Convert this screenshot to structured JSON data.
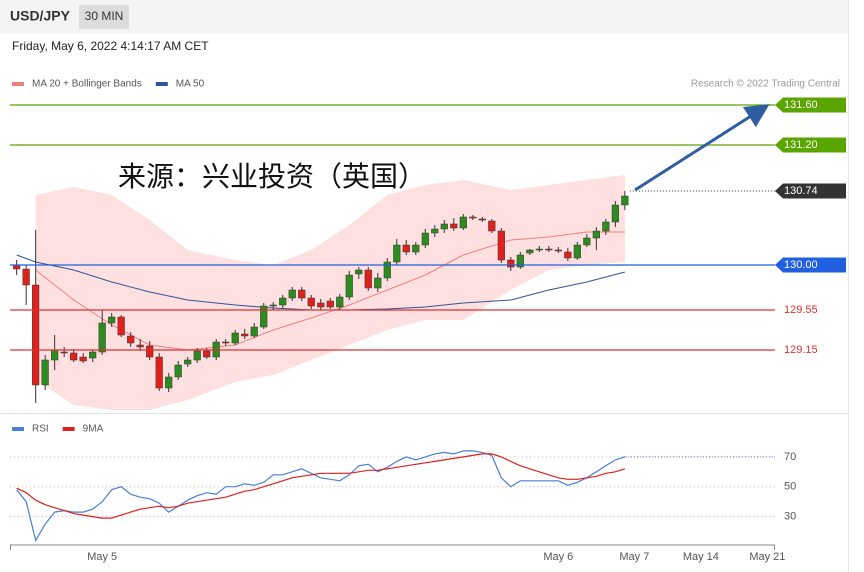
{
  "header": {
    "symbol": "USD/JPY",
    "interval": "30 MIN",
    "timestamp": "Friday, May 6, 2022 4:14:17 AM CET",
    "credit": "Research © 2022 Trading Central",
    "watermark": "来源：兴业投资（英国）"
  },
  "chart_data": [
    {
      "type": "candlestick",
      "xlim": [
        -0.7,
        79.8
      ],
      "ylim": [
        128.55,
        131.7
      ],
      "x": [
        0,
        1,
        2,
        3,
        4,
        5,
        6,
        7,
        8,
        9,
        10,
        11,
        12,
        13,
        14,
        15,
        16,
        17,
        18,
        19,
        20,
        21,
        22,
        23,
        24,
        25,
        26,
        27,
        28,
        29,
        30,
        31,
        32,
        33,
        34,
        35,
        36,
        37,
        38,
        39,
        40,
        41,
        42,
        43,
        44,
        45,
        46,
        47,
        48,
        49,
        50,
        51,
        52,
        53,
        54,
        55,
        56,
        57,
        58,
        59,
        60,
        61,
        62,
        63,
        64
      ],
      "open": [
        130.0,
        129.96,
        129.8,
        128.8,
        129.05,
        129.13,
        129.12,
        129.08,
        129.07,
        129.13,
        129.42,
        129.48,
        129.29,
        129.2,
        129.19,
        129.08,
        128.77,
        128.88,
        129.01,
        129.05,
        129.14,
        129.08,
        129.23,
        129.22,
        129.31,
        129.29,
        129.38,
        129.59,
        129.6,
        129.67,
        129.75,
        129.67,
        129.62,
        129.64,
        129.58,
        129.68,
        129.91,
        129.95,
        129.77,
        129.87,
        130.03,
        130.2,
        130.13,
        130.2,
        130.32,
        130.36,
        130.41,
        130.37,
        130.48,
        130.46,
        130.44,
        130.34,
        130.05,
        129.98,
        130.12,
        130.15,
        130.16,
        130.15,
        130.13,
        130.07,
        130.2,
        130.27,
        130.34,
        130.43,
        130.6
      ],
      "high": [
        130.05,
        130.0,
        130.35,
        129.1,
        129.3,
        129.18,
        129.16,
        129.12,
        129.15,
        129.55,
        129.52,
        129.5,
        129.33,
        129.26,
        129.24,
        129.12,
        128.92,
        129.04,
        129.08,
        129.17,
        129.17,
        129.26,
        129.26,
        129.35,
        129.36,
        129.42,
        129.62,
        129.63,
        129.7,
        129.78,
        129.78,
        129.7,
        129.66,
        129.67,
        129.71,
        129.94,
        129.98,
        129.98,
        129.92,
        130.07,
        130.26,
        130.25,
        130.23,
        130.36,
        130.4,
        130.45,
        130.47,
        130.51,
        130.5,
        130.48,
        130.46,
        130.37,
        130.08,
        130.13,
        130.16,
        130.19,
        130.19,
        130.18,
        130.17,
        130.23,
        130.31,
        130.38,
        130.46,
        130.64,
        130.74
      ],
      "low": [
        129.9,
        129.6,
        128.62,
        128.75,
        128.95,
        129.08,
        129.03,
        129.02,
        129.03,
        129.1,
        129.38,
        129.28,
        129.18,
        129.14,
        129.05,
        128.74,
        128.73,
        128.85,
        128.98,
        129.02,
        129.06,
        129.05,
        129.19,
        129.2,
        129.26,
        129.27,
        129.36,
        129.55,
        129.57,
        129.64,
        129.64,
        129.56,
        129.55,
        129.56,
        129.55,
        129.65,
        129.86,
        129.74,
        129.73,
        129.84,
        130.0,
        130.1,
        130.1,
        130.17,
        130.28,
        130.32,
        130.34,
        130.35,
        130.45,
        130.43,
        130.32,
        130.02,
        129.94,
        129.96,
        130.1,
        130.13,
        130.13,
        130.12,
        130.04,
        130.05,
        130.18,
        130.15,
        130.3,
        130.38,
        130.55
      ],
      "close": [
        129.96,
        129.8,
        128.8,
        129.05,
        129.15,
        129.12,
        129.05,
        129.04,
        129.13,
        129.42,
        129.48,
        129.3,
        129.22,
        129.18,
        129.08,
        128.77,
        128.88,
        129.0,
        129.05,
        129.14,
        129.08,
        129.23,
        129.22,
        129.32,
        129.29,
        129.38,
        129.59,
        129.6,
        129.67,
        129.75,
        129.67,
        129.59,
        129.58,
        129.58,
        129.68,
        129.9,
        129.95,
        129.77,
        129.87,
        130.03,
        130.2,
        130.13,
        130.2,
        130.32,
        130.36,
        130.41,
        130.37,
        130.48,
        130.47,
        130.45,
        130.34,
        130.05,
        129.98,
        130.1,
        130.15,
        130.16,
        130.15,
        130.14,
        130.07,
        130.2,
        130.27,
        130.34,
        130.43,
        130.6,
        130.69
      ],
      "up_color": "#2e8b20",
      "down_color": "#e0201b",
      "series": [
        {
          "name": "MA 20 + Bollinger Bands",
          "color": "#f08080",
          "band_color": "#ffe0e0",
          "x": [
            2,
            6,
            10,
            14,
            18,
            23,
            27,
            31,
            35,
            39,
            43,
            47,
            52,
            56,
            60,
            64
          ],
          "values": [
            129.95,
            129.65,
            129.4,
            129.2,
            129.15,
            129.2,
            129.35,
            129.47,
            129.6,
            129.75,
            129.9,
            130.1,
            130.25,
            130.28,
            130.33,
            130.33
          ],
          "upper": [
            130.7,
            130.78,
            130.7,
            130.45,
            130.15,
            130.05,
            130.0,
            130.15,
            130.4,
            130.7,
            130.8,
            130.85,
            130.75,
            130.8,
            130.85,
            130.9
          ],
          "lower": [
            128.85,
            128.6,
            128.55,
            128.55,
            128.65,
            128.83,
            128.9,
            129.05,
            129.2,
            129.35,
            129.45,
            129.45,
            129.75,
            129.95,
            130.0,
            130.03
          ]
        },
        {
          "name": "MA 50",
          "color": "#2f5597",
          "x": [
            0,
            2,
            6,
            10,
            14,
            18,
            23,
            27,
            31,
            35,
            39,
            43,
            47,
            52,
            56,
            60,
            64
          ],
          "values": [
            130.1,
            130.03,
            129.95,
            129.83,
            129.73,
            129.65,
            129.6,
            129.57,
            129.55,
            129.55,
            129.56,
            129.58,
            129.62,
            129.65,
            129.75,
            129.83,
            129.93
          ]
        }
      ],
      "levels": [
        {
          "value": 131.6,
          "label": "131.60",
          "color": "#5aa500",
          "style": "solid",
          "tag": true
        },
        {
          "value": 131.2,
          "label": "131.20",
          "color": "#5aa500",
          "style": "solid",
          "tag": true
        },
        {
          "value": 130.74,
          "label": "130.74",
          "color": "#333333",
          "style": "dotted",
          "tag": true
        },
        {
          "value": 130,
          "label": "130.00",
          "color": "#1f5fe0",
          "style": "solid",
          "tag": true
        },
        {
          "value": 129.55,
          "label": "129.55",
          "color": "#e03030",
          "style": "solid",
          "tag": false
        },
        {
          "value": 129.15,
          "label": "129.15",
          "color": "#e03030",
          "style": "solid",
          "tag": false
        }
      ]
    },
    {
      "type": "line",
      "xlim": [
        -0.7,
        79.8
      ],
      "ylim": [
        11,
        90
      ],
      "yticks": [
        30,
        50,
        70
      ],
      "grid": true,
      "xticks": [
        {
          "value": 9,
          "label": "May 5"
        },
        {
          "value": 57,
          "label": "May 6"
        },
        {
          "value": 65,
          "label": "May 7"
        },
        {
          "value": 72,
          "label": "May 14"
        },
        {
          "value": 79,
          "label": "May 21"
        }
      ],
      "x": [
        0,
        1,
        2,
        3,
        4,
        5,
        6,
        7,
        8,
        9,
        10,
        11,
        12,
        13,
        14,
        15,
        16,
        17,
        18,
        19,
        20,
        21,
        22,
        23,
        24,
        25,
        26,
        27,
        28,
        29,
        30,
        31,
        32,
        33,
        34,
        35,
        36,
        37,
        38,
        39,
        40,
        41,
        42,
        43,
        44,
        45,
        46,
        47,
        48,
        49,
        50,
        51,
        52,
        53,
        54,
        55,
        56,
        57,
        58,
        59,
        60,
        61,
        62,
        63,
        64
      ],
      "series": [
        {
          "name": "RSI",
          "color": "#4a7fd6",
          "values": [
            48,
            40,
            14,
            25,
            33,
            34,
            33,
            33,
            35,
            40,
            48,
            50,
            45,
            43,
            42,
            39,
            33,
            37,
            41,
            44,
            46,
            45,
            50,
            50,
            52,
            51,
            53,
            58,
            58,
            60,
            62,
            59,
            56,
            55,
            54,
            58,
            64,
            65,
            60,
            63,
            67,
            70,
            68,
            70,
            72,
            73,
            72,
            74,
            74,
            73,
            71,
            56,
            50,
            54,
            54,
            54,
            54,
            54,
            51,
            53,
            56,
            60,
            64,
            68,
            70
          ]
        },
        {
          "name": "9MA",
          "color": "#e02020",
          "values": [
            49,
            46,
            41,
            38,
            36,
            34,
            32,
            31,
            30,
            29,
            29,
            31,
            33,
            35,
            36,
            37,
            36,
            37,
            39,
            40,
            41,
            42,
            43,
            45,
            47,
            48,
            50,
            52,
            54,
            56,
            57,
            58,
            59,
            59,
            59,
            59,
            60,
            61,
            61,
            62,
            63,
            64,
            65,
            66,
            67,
            68,
            69,
            70,
            71,
            72,
            72,
            70,
            67,
            64,
            62,
            60,
            58,
            56,
            55,
            55,
            56,
            57,
            59,
            60,
            62
          ]
        }
      ]
    }
  ]
}
